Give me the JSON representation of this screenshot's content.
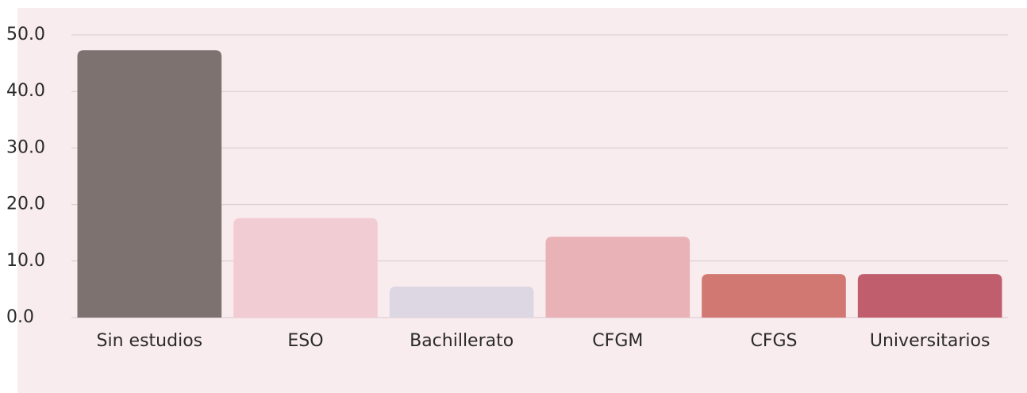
{
  "chart_data": {
    "type": "bar",
    "categories": [
      "Sin estudios",
      "ESO",
      "Bachillerato",
      "CFGM",
      "CFGS",
      "Universitarios"
    ],
    "values": [
      47.3,
      17.6,
      5.5,
      14.3,
      7.7,
      7.7
    ],
    "colors": [
      "#7e7270",
      "#f2ccd3",
      "#ddd6e3",
      "#e8b2b6",
      "#d17872",
      "#c05e6e"
    ],
    "ylim": [
      0,
      50
    ],
    "yticks": [
      {
        "value": 0,
        "label": "0.0"
      },
      {
        "value": 10,
        "label": "10.0"
      },
      {
        "value": 20,
        "label": "20.0"
      },
      {
        "value": 30,
        "label": "30.0"
      },
      {
        "value": 40,
        "label": "40.0"
      },
      {
        "value": 50,
        "label": "50.0"
      }
    ],
    "grid": true
  }
}
